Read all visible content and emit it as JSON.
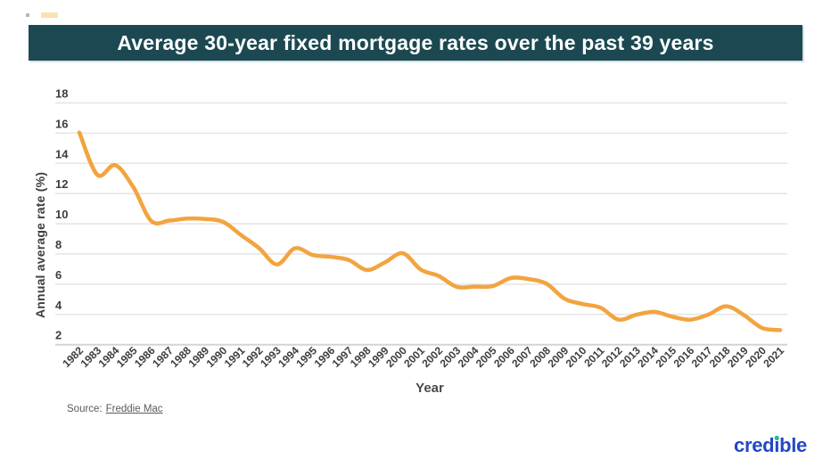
{
  "banner": {
    "title": "Average 30-year fixed mortgage rates over the past 39 years",
    "bg_color": "#1C4951",
    "text_color": "#FFFFFF"
  },
  "chart_data": {
    "type": "line",
    "title": "Average 30-year fixed mortgage rates over the past 39 years",
    "x": [
      1982,
      1983,
      1984,
      1985,
      1986,
      1987,
      1988,
      1989,
      1990,
      1991,
      1992,
      1993,
      1994,
      1995,
      1996,
      1997,
      1998,
      1999,
      2000,
      2001,
      2002,
      2003,
      2004,
      2005,
      2006,
      2007,
      2008,
      2009,
      2010,
      2011,
      2012,
      2013,
      2014,
      2015,
      2016,
      2017,
      2018,
      2019,
      2020,
      2021
    ],
    "values": [
      16.04,
      13.24,
      13.88,
      12.43,
      10.19,
      10.21,
      10.34,
      10.32,
      10.13,
      9.25,
      8.39,
      7.31,
      8.38,
      7.93,
      7.81,
      7.6,
      6.94,
      7.44,
      8.05,
      6.97,
      6.54,
      5.83,
      5.84,
      5.87,
      6.41,
      6.34,
      6.03,
      5.04,
      4.69,
      4.45,
      3.66,
      3.98,
      4.17,
      3.85,
      3.65,
      3.99,
      4.54,
      3.94,
      3.1,
      2.96
    ],
    "xlabel": "Year",
    "ylabel": "Annual average rate (%)",
    "ylim": [
      2,
      18
    ],
    "yticks": [
      2,
      4,
      6,
      8,
      10,
      12,
      14,
      16,
      18
    ],
    "grid": true,
    "legend": false,
    "line_color": "#F2A43F",
    "grid_color": "#E4E4E4",
    "axis_line_color": "#D4D4D4",
    "tick_label_color": "#3D3D3D"
  },
  "source": {
    "label": "Source:",
    "link_text": "Freddie Mac"
  },
  "logo": {
    "text": "credible",
    "blue": "#2347C5",
    "teal": "#23B5A3"
  }
}
